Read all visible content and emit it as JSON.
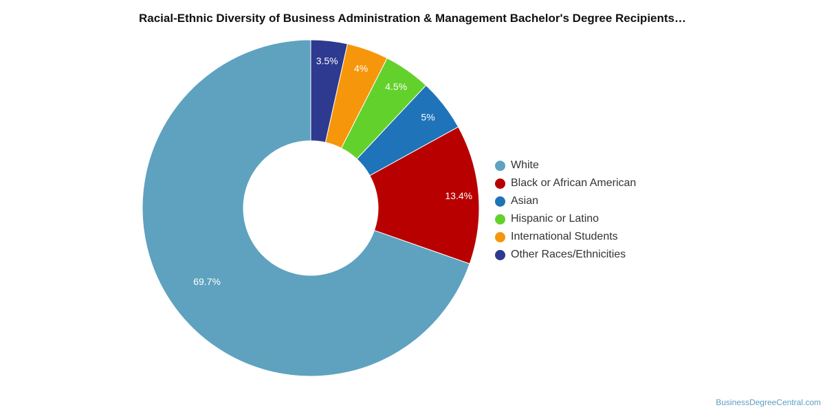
{
  "chart_data": {
    "type": "pie",
    "variant": "donut",
    "title": "Racial-Ethnic Diversity of Business Administration & Management Bachelor's Degree Recipients…",
    "series": [
      {
        "name": "White",
        "value": 69.7,
        "label": "69.7%",
        "color": "#5ea2bf"
      },
      {
        "name": "Black or African American",
        "value": 13.4,
        "label": "13.4%",
        "color": "#b80000"
      },
      {
        "name": "Asian",
        "value": 5,
        "label": "5%",
        "color": "#1f73b8"
      },
      {
        "name": "Hispanic or Latino",
        "value": 4.5,
        "label": "4.5%",
        "color": "#63d12b"
      },
      {
        "name": "International Students",
        "value": 4,
        "label": "4%",
        "color": "#f6960b"
      },
      {
        "name": "Other Races/Ethnicities",
        "value": 3.5,
        "label": "3.5%",
        "color": "#2e3a90"
      }
    ],
    "legend_position": "right"
  },
  "watermark": "BusinessDegreeCentral.com"
}
